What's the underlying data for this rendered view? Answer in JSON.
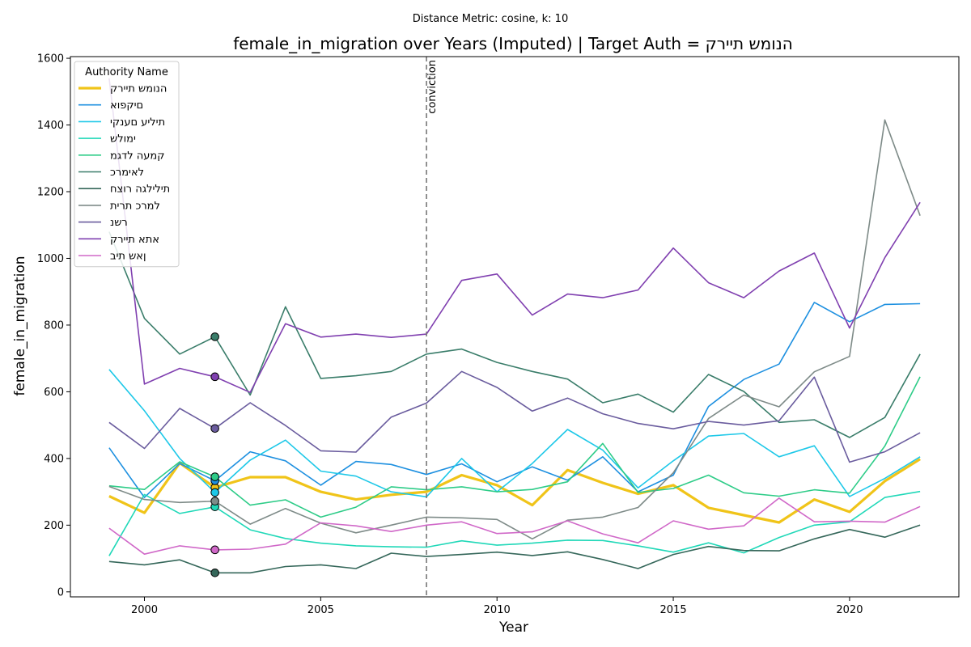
{
  "chart_data": {
    "type": "line",
    "suptitle": "Distance Metric: cosine, k: 10",
    "title": "female_in_migration over Years (Imputed) | Target Auth = הנומש תיירק",
    "xlabel": "Year",
    "ylabel": "female_in_migration",
    "xlim": [
      1997.9,
      2023.1
    ],
    "ylim": [
      -15,
      1605
    ],
    "xticks": [
      2000,
      2005,
      2010,
      2015,
      2020
    ],
    "yticks": [
      0,
      200,
      400,
      600,
      800,
      1000,
      1200,
      1400,
      1600
    ],
    "grid": false,
    "legend": {
      "title": "Authority Name",
      "placement": "upper-left"
    },
    "annotation": {
      "x": 2008,
      "text": "conviction"
    },
    "x": [
      1999,
      2000,
      2001,
      2002,
      2003,
      2004,
      2005,
      2006,
      2007,
      2008,
      2009,
      2010,
      2011,
      2012,
      2013,
      2014,
      2015,
      2016,
      2017,
      2018,
      2019,
      2020,
      2021,
      2022
    ],
    "imputed_x": 2002,
    "series": [
      {
        "name": "הנומש תיירק",
        "color": "#f0c419",
        "target": true,
        "values": [
          287,
          237,
          386,
          313,
          344,
          344,
          300,
          277,
          291,
          300,
          350,
          320,
          260,
          365,
          327,
          294,
          320,
          252,
          230,
          208,
          277,
          240,
          332,
          398
        ]
      },
      {
        "name": "םיקפוא",
        "color": "#1e90e0",
        "values": [
          432,
          283,
          385,
          333,
          420,
          393,
          320,
          391,
          382,
          352,
          384,
          330,
          375,
          335,
          405,
          300,
          350,
          556,
          637,
          683,
          868,
          810,
          862,
          864
        ]
      },
      {
        "name": "תיליע םענקי",
        "color": "#1ec8e8",
        "values": [
          667,
          543,
          400,
          298,
          395,
          455,
          362,
          347,
          300,
          285,
          400,
          300,
          385,
          487,
          425,
          312,
          393,
          467,
          475,
          405,
          438,
          286,
          340,
          405
        ]
      },
      {
        "name": "ימולש",
        "color": "#20d8b8",
        "values": [
          108,
          292,
          235,
          255,
          186,
          160,
          146,
          138,
          135,
          134,
          153,
          140,
          146,
          155,
          154,
          138,
          119,
          147,
          117,
          163,
          200,
          210,
          283,
          301
        ]
      },
      {
        "name": "קמעה לדגמ",
        "color": "#2ecc88",
        "values": [
          318,
          307,
          390,
          345,
          260,
          276,
          224,
          254,
          315,
          306,
          315,
          300,
          307,
          330,
          445,
          298,
          310,
          350,
          297,
          287,
          306,
          296,
          437,
          645
        ]
      },
      {
        "name": "לאימרכ",
        "color": "#3a7d6a",
        "values": [
          1080,
          820,
          713,
          765,
          590,
          855,
          640,
          648,
          661,
          713,
          728,
          688,
          661,
          638,
          567,
          593,
          539,
          652,
          601,
          508,
          516,
          463,
          523,
          713
        ]
      },
      {
        "name": "תילילגה רוצח",
        "color": "#35675a",
        "values": [
          91,
          81,
          96,
          57,
          57,
          76,
          81,
          70,
          116,
          106,
          112,
          119,
          109,
          120,
          97,
          70,
          112,
          136,
          124,
          123,
          159,
          187,
          164,
          200
        ]
      },
      {
        "name": "למרכ תרית",
        "color": "#7e8b88",
        "values": [
          316,
          277,
          268,
          272,
          203,
          250,
          206,
          177,
          200,
          224,
          222,
          217,
          159,
          215,
          224,
          253,
          357,
          520,
          590,
          555,
          660,
          706,
          1415,
          1128
        ]
      },
      {
        "name": "רשנ",
        "color": "#6a5c9e",
        "values": [
          508,
          430,
          550,
          490,
          567,
          499,
          423,
          419,
          524,
          566,
          661,
          613,
          542,
          581,
          534,
          505,
          489,
          511,
          500,
          513,
          644,
          389,
          420,
          477
        ]
      },
      {
        "name": "אתא תיירק",
        "color": "#8040b0",
        "values": [
          1540,
          623,
          670,
          645,
          598,
          804,
          764,
          773,
          763,
          773,
          934,
          953,
          830,
          893,
          882,
          905,
          1031,
          927,
          882,
          962,
          1016,
          791,
          1002,
          1168
        ]
      },
      {
        "name": "ןאש תיב",
        "color": "#d068c8",
        "values": [
          191,
          113,
          138,
          126,
          128,
          143,
          207,
          198,
          181,
          200,
          210,
          175,
          180,
          213,
          174,
          147,
          213,
          188,
          198,
          281,
          210,
          212,
          209,
          256
        ]
      }
    ]
  }
}
